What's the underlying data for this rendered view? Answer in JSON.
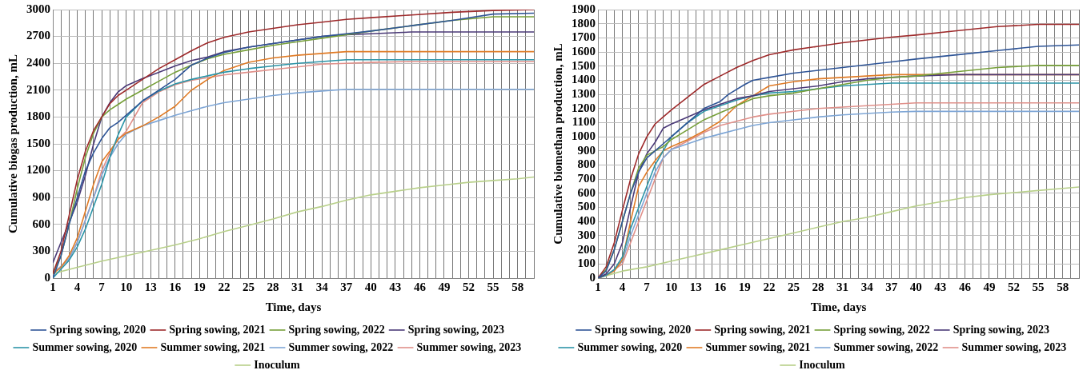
{
  "chart_data": [
    {
      "type": "line",
      "xlabel": "Time, days",
      "ylabel": "Cumulative biogas production, mL",
      "xlim": [
        1,
        60
      ],
      "xticks": [
        1,
        {
          "value": 2,
          "label": null
        },
        {
          "value": 3,
          "label": null
        },
        4,
        {
          "value": 5,
          "label": null
        },
        {
          "value": 6,
          "label": null
        },
        7,
        {
          "value": 8,
          "label": null
        },
        {
          "value": 9,
          "label": null
        },
        10,
        {
          "value": 11,
          "label": null
        },
        {
          "value": 12,
          "label": null
        },
        13,
        {
          "value": 14,
          "label": null
        },
        {
          "value": 15,
          "label": null
        },
        16,
        {
          "value": 17,
          "label": null
        },
        {
          "value": 18,
          "label": null
        },
        19,
        {
          "value": 20,
          "label": null
        },
        {
          "value": 21,
          "label": null
        },
        22,
        {
          "value": 23,
          "label": null
        },
        {
          "value": 24,
          "label": null
        },
        25,
        {
          "value": 26,
          "label": null
        },
        {
          "value": 27,
          "label": null
        },
        28,
        {
          "value": 29,
          "label": null
        },
        {
          "value": 30,
          "label": null
        },
        31,
        {
          "value": 32,
          "label": null
        },
        {
          "value": 33,
          "label": null
        },
        34,
        {
          "value": 35,
          "label": null
        },
        {
          "value": 36,
          "label": null
        },
        37,
        {
          "value": 38,
          "label": null
        },
        {
          "value": 39,
          "label": null
        },
        40,
        {
          "value": 41,
          "label": null
        },
        {
          "value": 42,
          "label": null
        },
        43,
        {
          "value": 44,
          "label": null
        },
        {
          "value": 45,
          "label": null
        },
        46,
        {
          "value": 47,
          "label": null
        },
        {
          "value": 48,
          "label": null
        },
        49,
        {
          "value": 50,
          "label": null
        },
        {
          "value": 51,
          "label": null
        },
        52,
        {
          "value": 53,
          "label": null
        },
        {
          "value": 54,
          "label": null
        },
        55,
        {
          "value": 56,
          "label": null
        },
        {
          "value": 57,
          "label": null
        },
        58,
        {
          "value": 59,
          "label": null
        },
        {
          "value": 60,
          "label": null
        }
      ],
      "ylim": [
        0,
        3000
      ],
      "yticks": [
        0,
        300,
        600,
        900,
        1200,
        1500,
        1800,
        2100,
        2400,
        2700,
        3000
      ],
      "grid": true,
      "legend": "bottom",
      "marker": "none",
      "series": [
        {
          "name": "Spring sowing, 2020",
          "color": "#2f5597",
          "x": [
            1,
            2,
            3,
            4,
            5,
            6,
            7,
            8,
            9,
            10,
            12,
            14,
            16,
            18,
            20,
            22,
            25,
            28,
            31,
            34,
            37,
            40,
            45,
            50,
            55,
            60
          ],
          "values": [
            0,
            250,
            600,
            900,
            1200,
            1400,
            1560,
            1680,
            1740,
            1820,
            1980,
            2100,
            2220,
            2380,
            2460,
            2520,
            2580,
            2620,
            2660,
            2700,
            2730,
            2760,
            2820,
            2880,
            2950,
            2960
          ]
        },
        {
          "name": "Spring sowing, 2021",
          "color": "#9e2a2b",
          "x": [
            1,
            2,
            3,
            4,
            5,
            6,
            7,
            8,
            9,
            10,
            12,
            14,
            16,
            18,
            20,
            22,
            25,
            28,
            31,
            34,
            37,
            40,
            45,
            50,
            55,
            60
          ],
          "values": [
            50,
            300,
            700,
            1100,
            1420,
            1650,
            1800,
            1950,
            2040,
            2100,
            2220,
            2340,
            2440,
            2540,
            2630,
            2690,
            2750,
            2790,
            2830,
            2860,
            2890,
            2910,
            2940,
            2970,
            2990,
            3000
          ]
        },
        {
          "name": "Spring sowing, 2022",
          "color": "#77a03a",
          "x": [
            1,
            2,
            3,
            4,
            5,
            6,
            7,
            8,
            9,
            10,
            12,
            14,
            16,
            18,
            20,
            22,
            25,
            28,
            31,
            34,
            37,
            40,
            45,
            50,
            55,
            60
          ],
          "values": [
            50,
            250,
            600,
            1000,
            1350,
            1620,
            1800,
            1880,
            1940,
            2000,
            2100,
            2200,
            2300,
            2380,
            2450,
            2500,
            2550,
            2600,
            2640,
            2680,
            2720,
            2760,
            2820,
            2880,
            2920,
            2920
          ]
        },
        {
          "name": "Spring sowing, 2023",
          "color": "#4b3a78",
          "x": [
            1,
            2,
            3,
            4,
            5,
            6,
            7,
            8,
            9,
            10,
            12,
            14,
            16,
            18,
            20,
            22,
            25,
            28,
            31,
            34,
            37,
            40,
            45,
            50,
            55,
            60
          ],
          "values": [
            170,
            400,
            620,
            850,
            1150,
            1500,
            1800,
            1960,
            2080,
            2150,
            2230,
            2300,
            2370,
            2430,
            2470,
            2530,
            2580,
            2620,
            2660,
            2700,
            2720,
            2730,
            2750,
            2750,
            2750,
            2750
          ]
        },
        {
          "name": "Summer sowing, 2020",
          "color": "#2c95a8",
          "x": [
            1,
            2,
            3,
            4,
            5,
            6,
            7,
            8,
            9,
            10,
            12,
            14,
            16,
            18,
            20,
            22,
            25,
            28,
            31,
            34,
            37,
            40,
            45,
            50,
            55,
            60
          ],
          "values": [
            0,
            100,
            200,
            350,
            550,
            800,
            1050,
            1350,
            1600,
            1800,
            1980,
            2090,
            2170,
            2220,
            2260,
            2300,
            2340,
            2370,
            2400,
            2420,
            2440,
            2440,
            2440,
            2440,
            2440,
            2440
          ]
        },
        {
          "name": "Summer sowing, 2021",
          "color": "#e07b26",
          "x": [
            1,
            2,
            3,
            4,
            5,
            6,
            7,
            8,
            9,
            10,
            12,
            14,
            16,
            18,
            20,
            22,
            25,
            28,
            31,
            34,
            37,
            40,
            45,
            50,
            55,
            60
          ],
          "values": [
            50,
            120,
            250,
            450,
            750,
            1050,
            1300,
            1420,
            1550,
            1620,
            1700,
            1800,
            1920,
            2100,
            2220,
            2320,
            2410,
            2460,
            2490,
            2510,
            2530,
            2530,
            2530,
            2530,
            2530,
            2530
          ]
        },
        {
          "name": "Summer sowing, 2022",
          "color": "#7ea6d6",
          "x": [
            1,
            2,
            3,
            4,
            5,
            6,
            7,
            8,
            9,
            10,
            12,
            14,
            16,
            18,
            20,
            22,
            25,
            28,
            31,
            34,
            37,
            40,
            45,
            50,
            55,
            60
          ],
          "values": [
            50,
            130,
            220,
            400,
            650,
            900,
            1150,
            1350,
            1500,
            1610,
            1700,
            1760,
            1820,
            1870,
            1920,
            1960,
            2000,
            2040,
            2070,
            2090,
            2110,
            2110,
            2110,
            2110,
            2110,
            2110
          ]
        },
        {
          "name": "Summer sowing, 2023",
          "color": "#e0908a",
          "x": [
            1,
            2,
            3,
            4,
            5,
            6,
            7,
            8,
            9,
            10,
            12,
            14,
            16,
            18,
            20,
            22,
            25,
            28,
            31,
            34,
            37,
            40,
            45,
            50,
            55,
            60
          ],
          "values": [
            50,
            130,
            220,
            400,
            650,
            900,
            1200,
            1400,
            1550,
            1640,
            1960,
            2080,
            2160,
            2210,
            2240,
            2270,
            2300,
            2330,
            2360,
            2390,
            2400,
            2410,
            2420,
            2420,
            2420,
            2420
          ]
        },
        {
          "name": "Inoculum",
          "color": "#b8d08a",
          "x": [
            1,
            4,
            7,
            10,
            13,
            16,
            19,
            22,
            25,
            28,
            31,
            34,
            37,
            40,
            43,
            46,
            49,
            52,
            55,
            58,
            60
          ],
          "values": [
            50,
            120,
            190,
            250,
            310,
            370,
            440,
            520,
            590,
            660,
            740,
            800,
            870,
            930,
            970,
            1010,
            1040,
            1070,
            1090,
            1110,
            1130
          ]
        }
      ]
    },
    {
      "type": "line",
      "xlabel": "Time, days",
      "ylabel": "Cumulative biomethan production, mL",
      "xlim": [
        1,
        60
      ],
      "xticks": [
        1,
        {
          "value": 2,
          "label": null
        },
        {
          "value": 3,
          "label": null
        },
        4,
        {
          "value": 5,
          "label": null
        },
        {
          "value": 6,
          "label": null
        },
        7,
        {
          "value": 8,
          "label": null
        },
        {
          "value": 9,
          "label": null
        },
        10,
        {
          "value": 11,
          "label": null
        },
        {
          "value": 12,
          "label": null
        },
        13,
        {
          "value": 14,
          "label": null
        },
        {
          "value": 15,
          "label": null
        },
        16,
        {
          "value": 17,
          "label": null
        },
        {
          "value": 18,
          "label": null
        },
        19,
        {
          "value": 20,
          "label": null
        },
        {
          "value": 21,
          "label": null
        },
        22,
        {
          "value": 23,
          "label": null
        },
        {
          "value": 24,
          "label": null
        },
        25,
        {
          "value": 26,
          "label": null
        },
        {
          "value": 27,
          "label": null
        },
        28,
        {
          "value": 29,
          "label": null
        },
        {
          "value": 30,
          "label": null
        },
        31,
        {
          "value": 32,
          "label": null
        },
        {
          "value": 33,
          "label": null
        },
        34,
        {
          "value": 35,
          "label": null
        },
        {
          "value": 36,
          "label": null
        },
        37,
        {
          "value": 38,
          "label": null
        },
        {
          "value": 39,
          "label": null
        },
        40,
        {
          "value": 41,
          "label": null
        },
        {
          "value": 42,
          "label": null
        },
        43,
        {
          "value": 44,
          "label": null
        },
        {
          "value": 45,
          "label": null
        },
        46,
        {
          "value": 47,
          "label": null
        },
        {
          "value": 48,
          "label": null
        },
        49,
        {
          "value": 50,
          "label": null
        },
        {
          "value": 51,
          "label": null
        },
        52,
        {
          "value": 53,
          "label": null
        },
        {
          "value": 54,
          "label": null
        },
        55,
        {
          "value": 56,
          "label": null
        },
        {
          "value": 57,
          "label": null
        },
        58,
        {
          "value": 59,
          "label": null
        },
        {
          "value": 60,
          "label": null
        }
      ],
      "ylim": [
        0,
        1900
      ],
      "yticks": [
        0,
        100,
        200,
        300,
        400,
        500,
        600,
        700,
        800,
        900,
        1000,
        1100,
        1200,
        1300,
        1400,
        1500,
        1600,
        1700,
        1800,
        1900
      ],
      "grid": true,
      "legend": "bottom",
      "marker": "none",
      "series": [
        {
          "name": "Spring sowing, 2020",
          "color": "#2f5597",
          "x": [
            1,
            2,
            3,
            4,
            5,
            6,
            7,
            8,
            9,
            10,
            12,
            14,
            16,
            17,
            19,
            20,
            22,
            25,
            28,
            31,
            34,
            37,
            40,
            45,
            50,
            55,
            60
          ],
          "values": [
            0,
            50,
            200,
            400,
            600,
            750,
            850,
            900,
            950,
            1000,
            1100,
            1200,
            1250,
            1300,
            1370,
            1400,
            1420,
            1450,
            1470,
            1490,
            1510,
            1530,
            1550,
            1580,
            1610,
            1640,
            1650
          ]
        },
        {
          "name": "Spring sowing, 2021",
          "color": "#9e2a2b",
          "x": [
            1,
            2,
            3,
            4,
            5,
            6,
            7,
            8,
            9,
            10,
            12,
            14,
            16,
            18,
            20,
            22,
            25,
            28,
            31,
            34,
            37,
            40,
            45,
            50,
            55,
            60
          ],
          "values": [
            0,
            80,
            250,
            480,
            700,
            880,
            1000,
            1090,
            1140,
            1190,
            1280,
            1370,
            1430,
            1490,
            1540,
            1580,
            1615,
            1640,
            1665,
            1685,
            1705,
            1720,
            1750,
            1780,
            1795,
            1795
          ]
        },
        {
          "name": "Spring sowing, 2022",
          "color": "#77a03a",
          "x": [
            1,
            2,
            3,
            4,
            5,
            6,
            7,
            8,
            9,
            10,
            12,
            14,
            16,
            18,
            20,
            22,
            25,
            28,
            31,
            34,
            37,
            40,
            45,
            50,
            55,
            60
          ],
          "values": [
            0,
            60,
            200,
            400,
            600,
            780,
            870,
            900,
            930,
            980,
            1050,
            1120,
            1170,
            1220,
            1270,
            1290,
            1310,
            1340,
            1370,
            1400,
            1420,
            1430,
            1460,
            1490,
            1505,
            1505
          ]
        },
        {
          "name": "Spring sowing, 2023",
          "color": "#4b3a78",
          "x": [
            1,
            2,
            3,
            4,
            5,
            6,
            7,
            8,
            9,
            10,
            12,
            14,
            16,
            18,
            20,
            22,
            25,
            28,
            31,
            34,
            37,
            40,
            45,
            60
          ],
          "values": [
            0,
            30,
            100,
            250,
            500,
            750,
            880,
            960,
            1060,
            1090,
            1140,
            1190,
            1230,
            1270,
            1290,
            1320,
            1340,
            1360,
            1390,
            1410,
            1420,
            1430,
            1440,
            1440
          ]
        },
        {
          "name": "Summer sowing, 2020",
          "color": "#2c95a8",
          "x": [
            1,
            2,
            3,
            4,
            5,
            6,
            7,
            8,
            9,
            10,
            12,
            14,
            16,
            18,
            20,
            22,
            25,
            28,
            31,
            34,
            37,
            60
          ],
          "values": [
            0,
            20,
            60,
            150,
            350,
            500,
            650,
            800,
            900,
            1000,
            1100,
            1180,
            1220,
            1260,
            1290,
            1310,
            1320,
            1340,
            1360,
            1370,
            1380,
            1380
          ]
        },
        {
          "name": "Summer sowing, 2021",
          "color": "#e07b26",
          "x": [
            1,
            2,
            3,
            4,
            5,
            6,
            7,
            8,
            9,
            10,
            12,
            14,
            16,
            18,
            20,
            22,
            25,
            28,
            31,
            34,
            37,
            40,
            60
          ],
          "values": [
            0,
            20,
            50,
            130,
            400,
            650,
            750,
            830,
            900,
            930,
            980,
            1040,
            1110,
            1220,
            1290,
            1360,
            1390,
            1410,
            1420,
            1430,
            1440,
            1440,
            1440
          ]
        },
        {
          "name": "Summer sowing, 2022",
          "color": "#7ea6d6",
          "x": [
            1,
            2,
            3,
            4,
            5,
            6,
            7,
            8,
            9,
            10,
            12,
            14,
            16,
            18,
            20,
            22,
            25,
            28,
            31,
            34,
            37,
            40,
            60
          ],
          "values": [
            0,
            20,
            60,
            120,
            300,
            450,
            600,
            750,
            850,
            910,
            950,
            990,
            1020,
            1050,
            1080,
            1100,
            1120,
            1140,
            1155,
            1165,
            1175,
            1180,
            1180
          ]
        },
        {
          "name": "Summer sowing, 2023",
          "color": "#e0908a",
          "x": [
            1,
            2,
            3,
            4,
            5,
            6,
            7,
            8,
            9,
            10,
            12,
            14,
            16,
            18,
            20,
            22,
            25,
            28,
            31,
            34,
            37,
            40,
            60
          ],
          "values": [
            0,
            20,
            60,
            100,
            250,
            400,
            550,
            700,
            850,
            910,
            970,
            1030,
            1080,
            1110,
            1140,
            1160,
            1180,
            1200,
            1210,
            1220,
            1230,
            1240,
            1240
          ]
        },
        {
          "name": "Inoculum",
          "color": "#b8d08a",
          "x": [
            1,
            4,
            7,
            10,
            13,
            16,
            19,
            22,
            25,
            28,
            31,
            34,
            37,
            40,
            43,
            46,
            49,
            52,
            55,
            58,
            60
          ],
          "values": [
            0,
            50,
            80,
            120,
            160,
            200,
            240,
            280,
            320,
            360,
            400,
            430,
            470,
            510,
            540,
            570,
            590,
            605,
            620,
            635,
            645
          ]
        }
      ]
    }
  ]
}
